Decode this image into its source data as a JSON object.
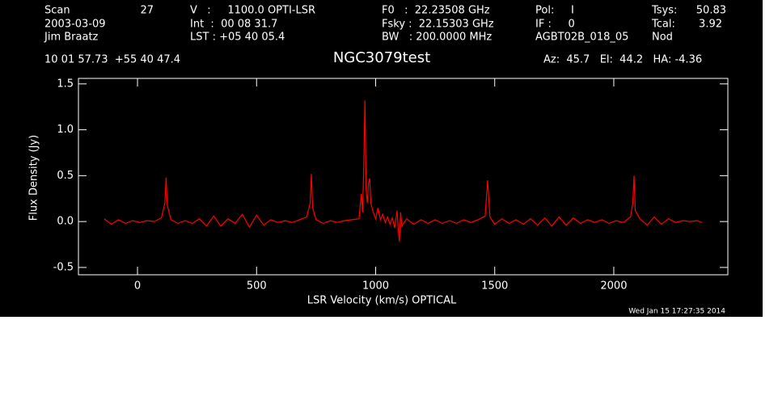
{
  "chart_data": {
    "type": "line",
    "title": "NGC3079test",
    "header": [
      "Scan",
      "27",
      "2003-03-09",
      "Jim Braatz",
      "V   :     1100.0 OPTI-LSR",
      "Int  :  00 08 31.7",
      "LST : +05 40 05.4",
      "F0   :  22.23508 GHz",
      "Fsky :  22.15303 GHz",
      "BW   : 200.0000 MHz",
      "Pol:     I",
      "IF :     0",
      "AGBT02B_018_05",
      "Tsys:",
      "50.83",
      "Tcal:",
      "3.92",
      "Nod",
      "10 01 57.73  +55 40 47.4",
      "Az:  45.7   El:  44.2   HA: -4.36"
    ],
    "timestamp": "Wed Jan 15 17:27:35 2014",
    "x_label": "LSR Velocity (km/s) OPTICAL",
    "y_label": "Flux Density (Jy)",
    "xlim": [
      -248,
      2479
    ],
    "ylim": [
      -0.58,
      1.56
    ],
    "xticks": [
      0,
      500,
      1000,
      1500,
      2000
    ],
    "yticks": [
      -0.5,
      {
        "value": 0,
        "label": "0.0"
      },
      0.5,
      {
        "value": 1,
        "label": "1.0"
      },
      1.5
    ],
    "series": [
      {
        "color": "#ff0000",
        "x": [
          -140,
          -110,
          -80,
          -50,
          -20,
          10,
          40,
          70,
          100,
          115,
          120,
          125,
          140,
          170,
          200,
          230,
          260,
          290,
          320,
          350,
          380,
          410,
          440,
          470,
          500,
          530,
          560,
          590,
          620,
          650,
          680,
          710,
          725,
          730,
          735,
          750,
          780,
          810,
          840,
          870,
          900,
          930,
          940,
          945,
          950,
          955,
          960,
          965,
          970,
          975,
          980,
          990,
          1000,
          1010,
          1020,
          1030,
          1040,
          1050,
          1060,
          1070,
          1080,
          1090,
          1095,
          1100,
          1105,
          1110,
          1130,
          1160,
          1190,
          1220,
          1250,
          1280,
          1310,
          1340,
          1370,
          1400,
          1430,
          1460,
          1470,
          1480,
          1500,
          1530,
          1560,
          1590,
          1620,
          1650,
          1680,
          1710,
          1740,
          1770,
          1800,
          1830,
          1860,
          1890,
          1920,
          1950,
          1980,
          2010,
          2040,
          2070,
          2080,
          2085,
          2090,
          2110,
          2140,
          2170,
          2200,
          2230,
          2260,
          2290,
          2320,
          2350,
          2370
        ],
        "values": [
          0.03,
          -0.03,
          0.02,
          -0.02,
          0.01,
          -0.01,
          0.01,
          0.0,
          0.04,
          0.2,
          0.48,
          0.18,
          0.02,
          -0.02,
          0.01,
          -0.02,
          0.03,
          -0.05,
          0.06,
          -0.05,
          0.03,
          -0.02,
          0.08,
          -0.06,
          0.07,
          -0.04,
          0.02,
          -0.01,
          0.01,
          -0.01,
          0.02,
          0.05,
          0.2,
          0.52,
          0.15,
          0.02,
          -0.02,
          0.01,
          -0.01,
          0.01,
          0.02,
          0.03,
          0.3,
          0.1,
          0.6,
          1.32,
          0.35,
          0.2,
          0.42,
          0.47,
          0.2,
          0.1,
          0.03,
          0.15,
          0.02,
          0.08,
          -0.01,
          0.05,
          -0.03,
          0.04,
          -0.07,
          0.12,
          -0.1,
          -0.22,
          0.1,
          -0.05,
          0.03,
          -0.03,
          0.02,
          -0.02,
          0.02,
          -0.02,
          0.01,
          -0.02,
          0.02,
          -0.01,
          0.02,
          0.06,
          0.45,
          0.05,
          -0.03,
          0.03,
          -0.02,
          0.02,
          -0.03,
          0.03,
          -0.04,
          0.04,
          -0.05,
          0.05,
          -0.04,
          0.04,
          -0.02,
          0.02,
          -0.01,
          0.02,
          -0.02,
          0.01,
          -0.01,
          0.05,
          0.2,
          0.5,
          0.12,
          0.03,
          -0.04,
          0.05,
          -0.03,
          0.03,
          -0.01,
          0.01,
          0.0,
          0.01,
          -0.01
        ]
      }
    ]
  }
}
